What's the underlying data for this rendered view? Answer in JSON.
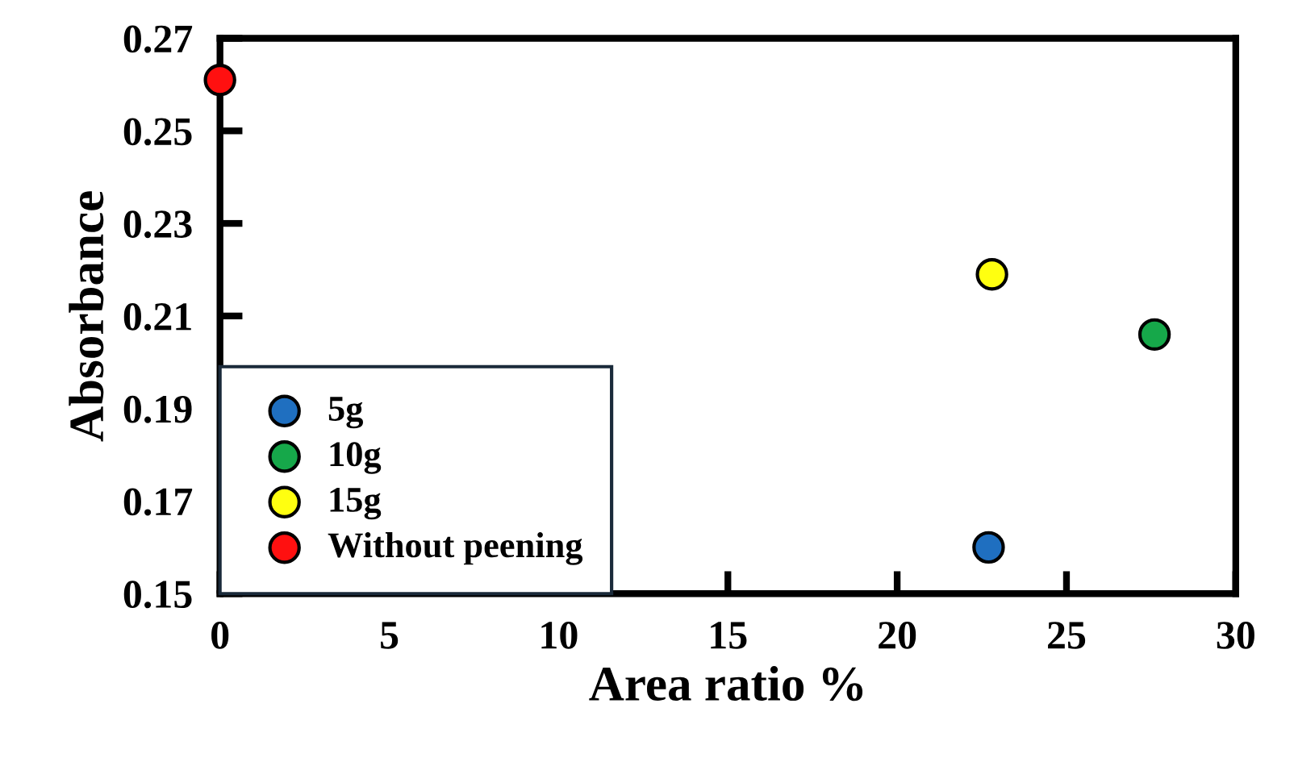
{
  "chart_data": {
    "type": "scatter",
    "xlabel": "Area ratio %",
    "ylabel": "Absorbance",
    "xlim": [
      0,
      30
    ],
    "xticks": [
      0,
      5,
      10,
      15,
      20,
      25,
      30
    ],
    "ylim": [
      0.15,
      0.27
    ],
    "yticks": [
      0.15,
      0.17,
      0.19,
      0.21,
      0.23,
      0.25,
      0.27
    ],
    "grid": false,
    "legend": "bottom left",
    "marker": "circle",
    "series": [
      {
        "name": "5g",
        "color": "#1f6fc0",
        "x": [
          22.7
        ],
        "values": [
          0.16
        ]
      },
      {
        "name": "10g",
        "color": "#16a84a",
        "x": [
          27.6
        ],
        "values": [
          0.206
        ]
      },
      {
        "name": "15g",
        "color": "#ffff10",
        "x": [
          22.8
        ],
        "values": [
          0.219
        ]
      },
      {
        "name": "Without peening",
        "color": "#ff1010",
        "x": [
          0
        ],
        "values": [
          0.261
        ]
      }
    ]
  }
}
